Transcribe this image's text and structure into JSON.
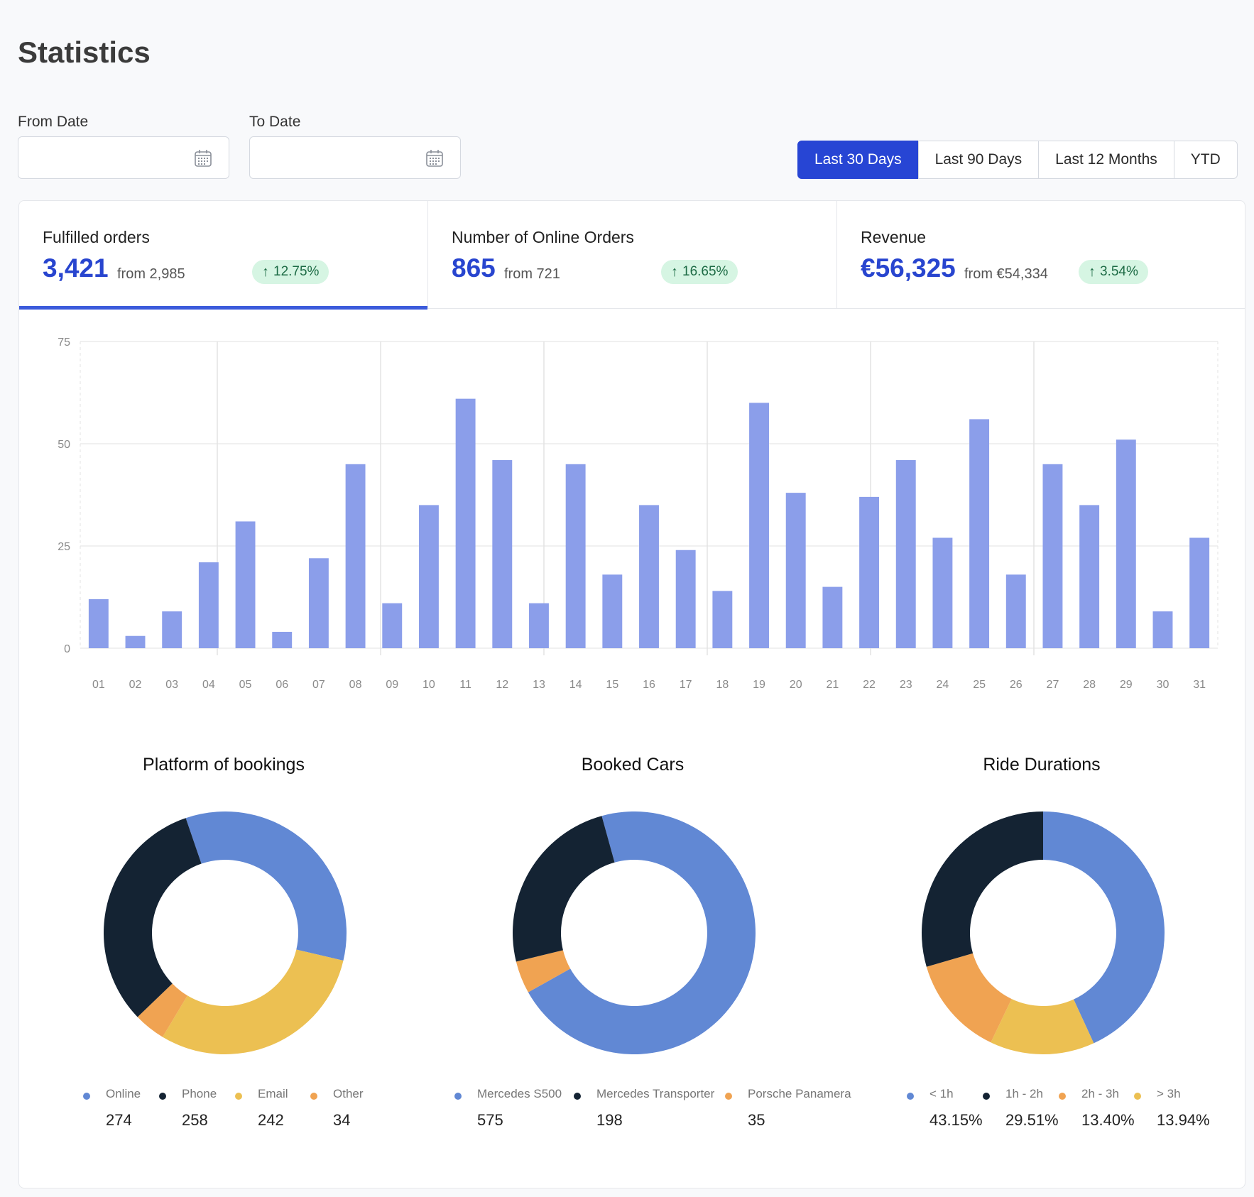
{
  "page": {
    "title": "Statistics"
  },
  "filters": {
    "from_label": "From Date",
    "to_label": "To Date",
    "from_value": "",
    "to_value": "",
    "ranges": [
      "Last 30 Days",
      "Last 90 Days",
      "Last 12 Months",
      "YTD"
    ],
    "active_range": "Last 30 Days"
  },
  "kpis": [
    {
      "label": "Fulfilled orders",
      "value": "3,421",
      "from": "from 2,985",
      "change": "12.75%",
      "active": true
    },
    {
      "label": "Number of Online Orders",
      "value": "865",
      "from": "from 721",
      "change": "16.65%",
      "active": false
    },
    {
      "label": "Revenue",
      "value": "€56,325",
      "from": "from €54,334",
      "change": "3.54%",
      "active": false
    }
  ],
  "colors": {
    "accent": "#2745d4",
    "bar": "#8b9eea",
    "blue": "#6188d4",
    "navy": "#142333",
    "orange": "#f0a352",
    "yellow": "#ecc052",
    "badge_bg": "#d6f5e3",
    "badge_fg": "#1d6b45"
  },
  "chart_data": [
    {
      "type": "bar",
      "categories": [
        "01",
        "02",
        "03",
        "04",
        "05",
        "06",
        "07",
        "08",
        "09",
        "10",
        "11",
        "12",
        "13",
        "14",
        "15",
        "16",
        "17",
        "18",
        "19",
        "20",
        "21",
        "22",
        "23",
        "24",
        "25",
        "26",
        "27",
        "28",
        "29",
        "30",
        "31"
      ],
      "values": [
        12,
        3,
        9,
        21,
        31,
        4,
        22,
        45,
        11,
        35,
        61,
        46,
        11,
        45,
        18,
        35,
        24,
        14,
        60,
        38,
        15,
        37,
        46,
        27,
        56,
        18,
        45,
        35,
        51,
        9,
        27
      ],
      "ylim": [
        0,
        75
      ],
      "yticks": [
        0,
        25,
        50,
        75
      ],
      "grid": true
    },
    {
      "type": "pie",
      "title": "Platform of bookings",
      "labels": [
        "Online",
        "Phone",
        "Email",
        "Other"
      ],
      "values": [
        274,
        258,
        242,
        34
      ],
      "value_labels": [
        "274",
        "258",
        "242",
        "34"
      ],
      "colors": [
        "#6188d4",
        "#142333",
        "#ecc052",
        "#f0a352"
      ],
      "slice_order": [
        0,
        2,
        3,
        1
      ]
    },
    {
      "type": "pie",
      "title": "Booked Cars",
      "labels": [
        "Mercedes S500",
        "Mercedes Transporter",
        "Porsche Panamera"
      ],
      "values": [
        575,
        198,
        35
      ],
      "value_labels": [
        "575",
        "198",
        "35"
      ],
      "colors": [
        "#6188d4",
        "#142333",
        "#f0a352"
      ],
      "slice_order": [
        0,
        2,
        1
      ]
    },
    {
      "type": "pie",
      "title": "Ride Durations",
      "labels": [
        "< 1h",
        "1h - 2h",
        "2h - 3h",
        "> 3h"
      ],
      "values": [
        43.15,
        29.51,
        13.4,
        13.94
      ],
      "value_labels": [
        "43.15%",
        "29.51%",
        "13.40%",
        "13.94%"
      ],
      "colors": [
        "#6188d4",
        "#142333",
        "#f0a352",
        "#ecc052"
      ],
      "slice_order": [
        0,
        3,
        2,
        1
      ]
    }
  ]
}
